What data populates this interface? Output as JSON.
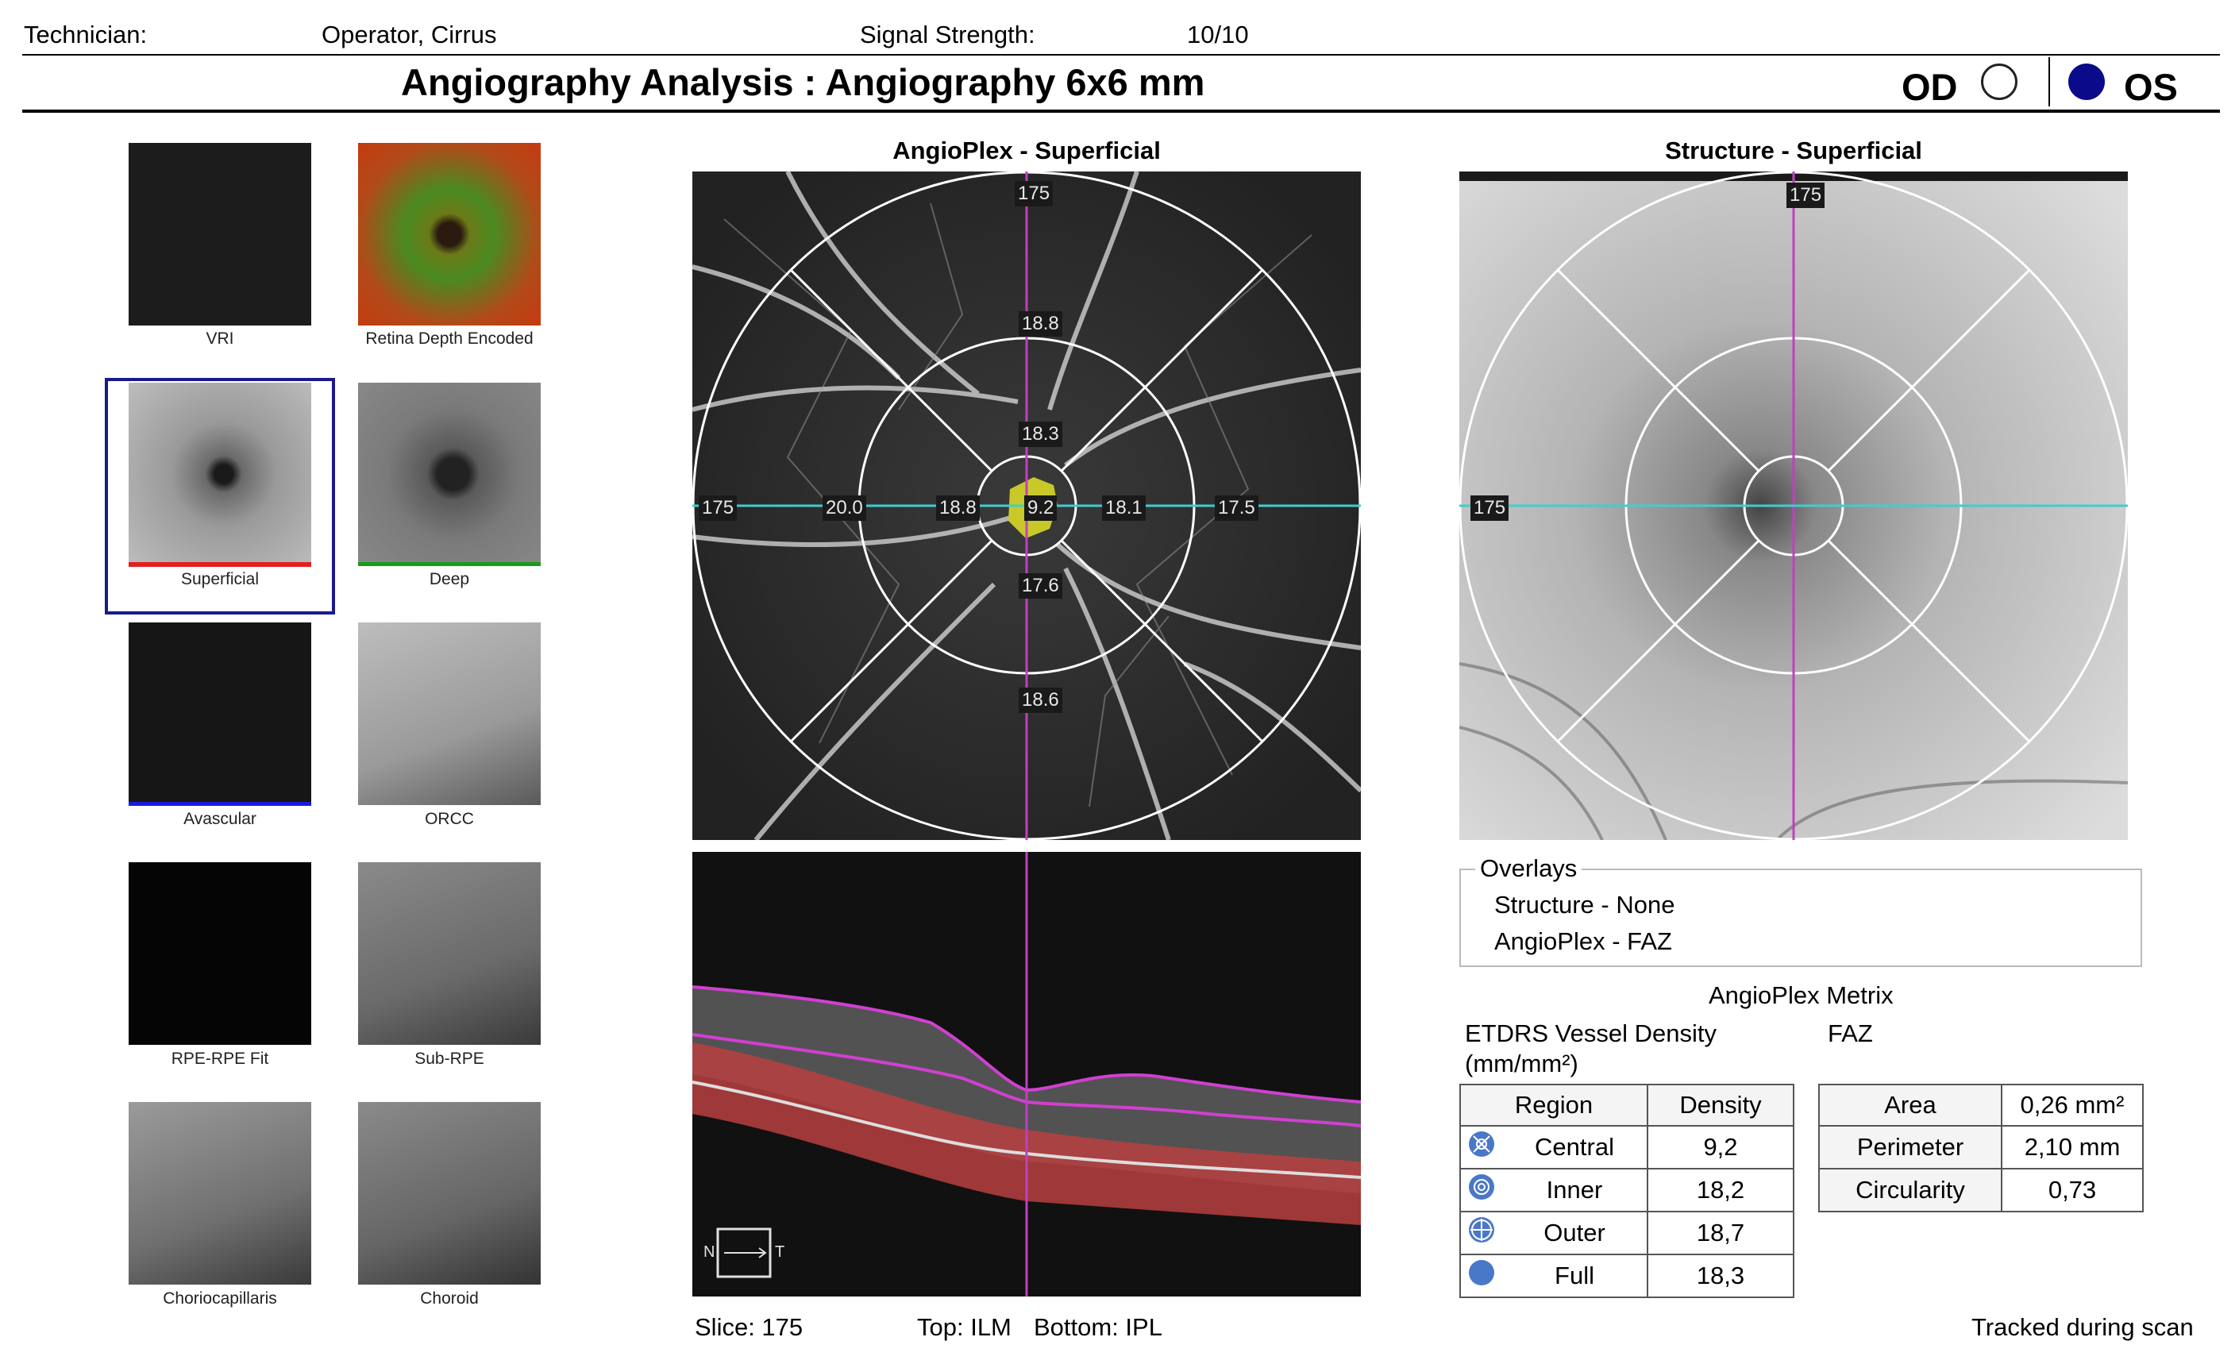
{
  "header": {
    "technician_label": "Technician:",
    "technician_value": "Operator, Cirrus",
    "signal_label": "Signal Strength:",
    "signal_value": "10/10",
    "title": "Angiography Analysis : Angiography 6x6 mm",
    "eye_od": "OD",
    "eye_os": "OS",
    "selected_eye": "OS"
  },
  "thumbnails": [
    {
      "label": "VRI",
      "selected": false
    },
    {
      "label": "Retina Depth Encoded",
      "selected": false
    },
    {
      "label": "Superficial",
      "selected": true,
      "underline_color": "#e02020"
    },
    {
      "label": "Deep",
      "selected": false,
      "underline_color": "#1a9a1a"
    },
    {
      "label": "Avascular",
      "selected": false,
      "underline_color": "#1a1ae0"
    },
    {
      "label": "ORCC",
      "selected": false
    },
    {
      "label": "RPE-RPE Fit",
      "selected": false
    },
    {
      "label": "Sub-RPE",
      "selected": false
    },
    {
      "label": "Choriocapillaris",
      "selected": false
    },
    {
      "label": "Choroid",
      "selected": false
    }
  ],
  "angioplex": {
    "title": "AngioPlex - Superficial",
    "slice_marker": "175",
    "h_marker": "175",
    "sector_values": {
      "outer_top": "18.8",
      "inner_top": "18.3",
      "outer_left": "20.0",
      "inner_left": "18.8",
      "center": "9.2",
      "inner_right": "18.1",
      "outer_right": "17.5",
      "inner_bottom": "17.6",
      "outer_bottom": "18.6"
    }
  },
  "bscan": {
    "orientation_n": "N",
    "orientation_t": "T"
  },
  "structure": {
    "title": "Structure - Superficial",
    "slice_marker": "175",
    "h_marker": "175"
  },
  "overlays": {
    "title": "Overlays",
    "structure": "Structure - None",
    "angioplex": "AngioPlex - FAZ"
  },
  "metrix": {
    "title": "AngioPlex Metrix",
    "etdrs_label": "ETDRS Vessel Density",
    "etdrs_units": "(mm/mm²)",
    "faz_label": "FAZ",
    "density_headers": [
      "Region",
      "Density"
    ],
    "density_rows": [
      {
        "icon": "central-region-icon",
        "region": "Central",
        "density": "9,2"
      },
      {
        "icon": "inner-region-icon",
        "region": "Inner",
        "density": "18,2"
      },
      {
        "icon": "outer-region-icon",
        "region": "Outer",
        "density": "18,7"
      },
      {
        "icon": "full-region-icon",
        "region": "Full",
        "density": "18,3"
      }
    ],
    "faz_rows": [
      {
        "label": "Area",
        "value": "0,26 mm²"
      },
      {
        "label": "Perimeter",
        "value": "2,10 mm"
      },
      {
        "label": "Circularity",
        "value": "0,73"
      }
    ]
  },
  "footer": {
    "slice": "Slice: 175",
    "top": "Top: ILM",
    "bottom": "Bottom: IPL",
    "tracked": "Tracked during scan"
  },
  "colors": {
    "selected_frame": "#1a1a8c",
    "os_dot": "#0a0a8a",
    "magenta_line": "#c040c0",
    "cyan_line": "#3ccfd0",
    "faz": "#c8c828"
  }
}
